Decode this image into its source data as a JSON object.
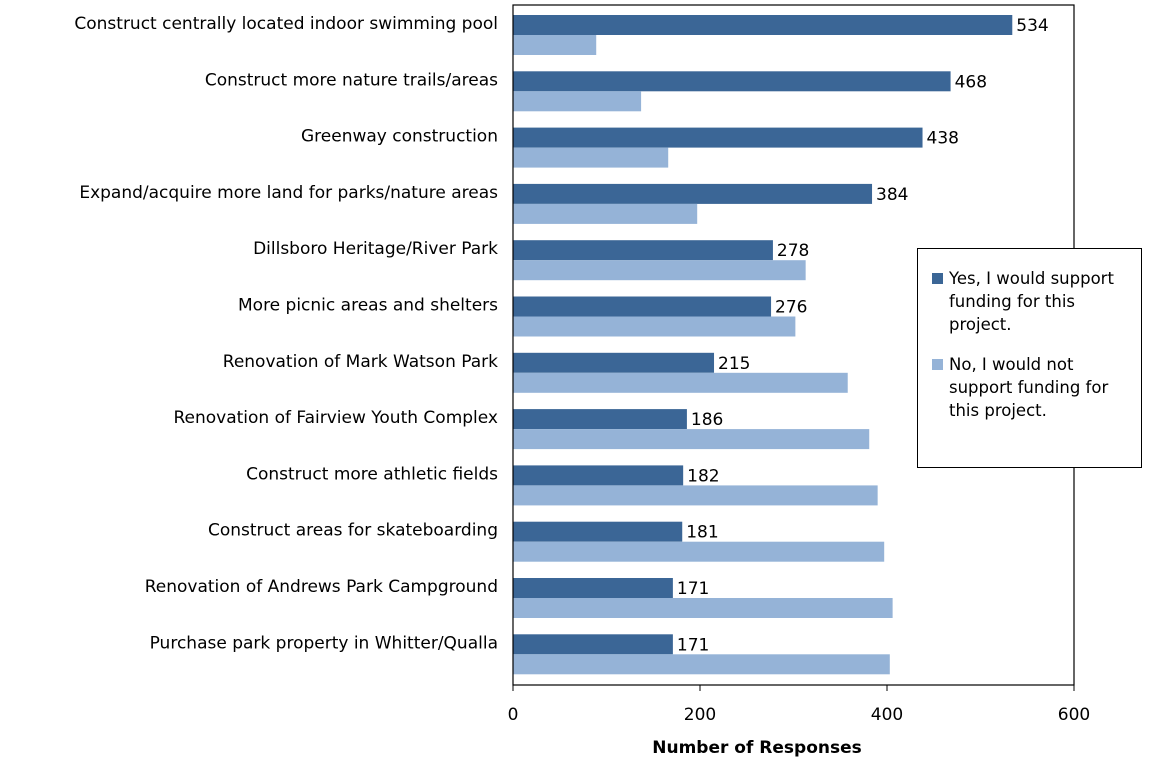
{
  "chart_data": {
    "type": "hbar",
    "categories": [
      "Construct centrally located indoor swimming pool",
      "Construct more nature trails/areas",
      "Greenway construction",
      "Expand/acquire more land for parks/nature areas",
      "Dillsboro Heritage/River Park",
      "More picnic areas and shelters",
      "Renovation of Mark Watson Park",
      "Renovation of Fairview Youth Complex",
      "Construct more athletic fields",
      "Construct areas for skateboarding",
      "Renovation of Andrews Park Campground",
      "Purchase park property in Whitter/Qualla"
    ],
    "series": [
      {
        "name": "Yes, I would support funding for this project.",
        "color": "#3b6696",
        "values": [
          534,
          468,
          438,
          384,
          278,
          276,
          215,
          186,
          182,
          181,
          171,
          171
        ]
      },
      {
        "name": "No, I would not support funding for this project.",
        "color": "#95b3d7",
        "values": [
          89,
          137,
          166,
          197,
          313,
          302,
          358,
          381,
          390,
          397,
          406,
          403
        ]
      }
    ],
    "xlabel": "Number of Responses",
    "xlim": [
      0,
      600
    ],
    "xticks": [
      0,
      200,
      400,
      600
    ],
    "legend": "right"
  }
}
